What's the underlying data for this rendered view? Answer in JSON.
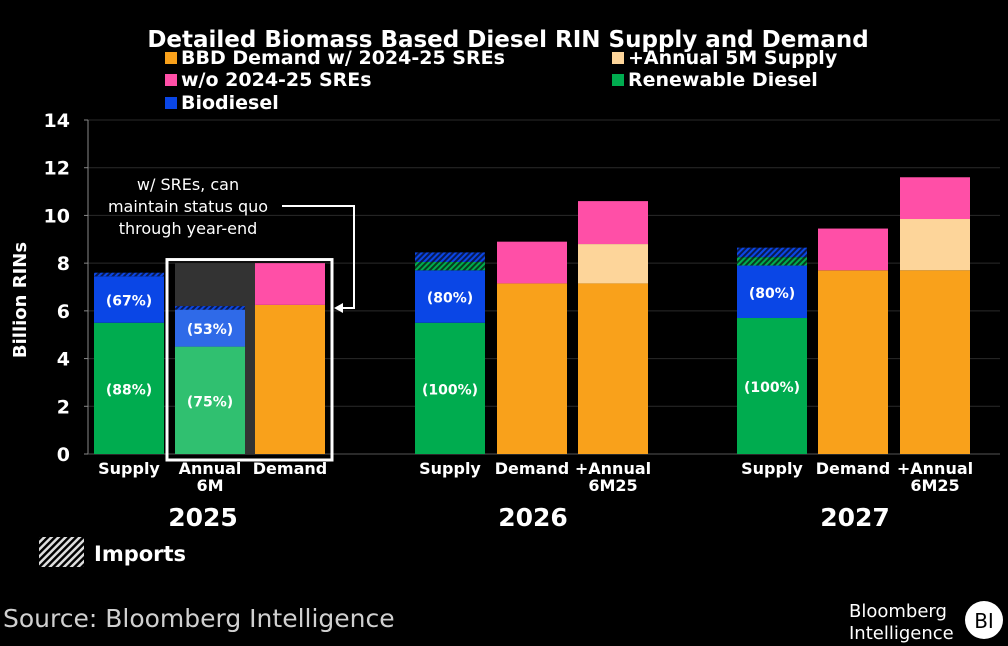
{
  "chart_data": {
    "type": "bar",
    "title": "Detailed Biomass Based Diesel RIN Supply and Demand",
    "ylabel": "Billion RINs",
    "ylim": [
      0,
      14
    ],
    "yticks": [
      0,
      2,
      4,
      6,
      8,
      10,
      12,
      14
    ],
    "grid": true,
    "legend": [
      {
        "name": "BBD Demand w/ 2024-25 SREs",
        "color": "#f9a11b"
      },
      {
        "name": "+Annual 5M Supply",
        "color": "#fdd59a"
      },
      {
        "name": "w/o 2024-25 SREs",
        "color": "#ff4fa7"
      },
      {
        "name": "Renewable Diesel",
        "color": "#00ac4f"
      },
      {
        "name": "Biodiesel",
        "color": "#0a46e6"
      }
    ],
    "imports_label": "Imports",
    "annotation": [
      "w/ SREs, can",
      "maintain status quo",
      "through year-end"
    ],
    "groups": [
      {
        "year": "2025",
        "bars": [
          {
            "label": [
              "Supply"
            ],
            "segments": [
              {
                "s": "Renewable Diesel",
                "v": 5.5,
                "label": "(88%)"
              },
              {
                "s": "Biodiesel",
                "v": 1.95,
                "label": "(67%)"
              },
              {
                "s": "Imports",
                "v": 0.15
              }
            ]
          },
          {
            "label": [
              "Annual",
              "6M"
            ],
            "highlight": true,
            "total_bg": 8.0,
            "segments": [
              {
                "s": "Renewable Diesel",
                "v": 4.5,
                "label": "(75%)"
              },
              {
                "s": "Biodiesel",
                "v": 1.55,
                "label": "(53%)"
              },
              {
                "s": "Imports",
                "v": 0.15
              }
            ]
          },
          {
            "label": [
              "Demand"
            ],
            "segments": [
              {
                "s": "BBD Demand w/ 2024-25 SREs",
                "v": 6.25
              },
              {
                "s": "w/o 2024-25 SREs",
                "v": 1.75
              }
            ]
          }
        ]
      },
      {
        "year": "2026",
        "bars": [
          {
            "label": [
              "Supply"
            ],
            "segments": [
              {
                "s": "Renewable Diesel",
                "v": 5.5,
                "label": "(100%)"
              },
              {
                "s": "Biodiesel",
                "v": 2.2,
                "label": "(80%)"
              },
              {
                "s": "Imports RD",
                "v": 0.35
              },
              {
                "s": "Imports BD",
                "v": 0.4
              }
            ]
          },
          {
            "label": [
              "Demand"
            ],
            "segments": [
              {
                "s": "BBD Demand w/ 2024-25 SREs",
                "v": 7.15
              },
              {
                "s": "w/o 2024-25 SREs",
                "v": 1.75
              }
            ]
          },
          {
            "label": [
              "+Annual",
              "6M25"
            ],
            "segments": [
              {
                "s": "BBD Demand w/ 2024-25 SREs",
                "v": 7.15
              },
              {
                "s": "+Annual 5M Supply",
                "v": 1.65
              },
              {
                "s": "w/o 2024-25 SREs",
                "v": 1.8
              }
            ]
          }
        ]
      },
      {
        "year": "2027",
        "bars": [
          {
            "label": [
              "Supply"
            ],
            "segments": [
              {
                "s": "Renewable Diesel",
                "v": 5.7,
                "label": "(100%)"
              },
              {
                "s": "Biodiesel",
                "v": 2.2,
                "label": "(80%)"
              },
              {
                "s": "Imports RD",
                "v": 0.35
              },
              {
                "s": "Imports BD",
                "v": 0.4
              }
            ]
          },
          {
            "label": [
              "Demand"
            ],
            "segments": [
              {
                "s": "BBD Demand w/ 2024-25 SREs",
                "v": 7.7
              },
              {
                "s": "w/o 2024-25 SREs",
                "v": 1.75
              }
            ]
          },
          {
            "label": [
              "+Annual",
              "6M25"
            ],
            "segments": [
              {
                "s": "BBD Demand w/ 2024-25 SREs",
                "v": 7.7
              },
              {
                "s": "+Annual 5M Supply",
                "v": 2.15
              },
              {
                "s": "w/o 2024-25 SREs",
                "v": 1.75
              }
            ]
          }
        ]
      }
    ]
  },
  "footer": {
    "source": "Source: Bloomberg Intelligence",
    "logo_line1": "Bloomberg",
    "logo_line2": "Intelligence",
    "logo_badge": "BI"
  }
}
